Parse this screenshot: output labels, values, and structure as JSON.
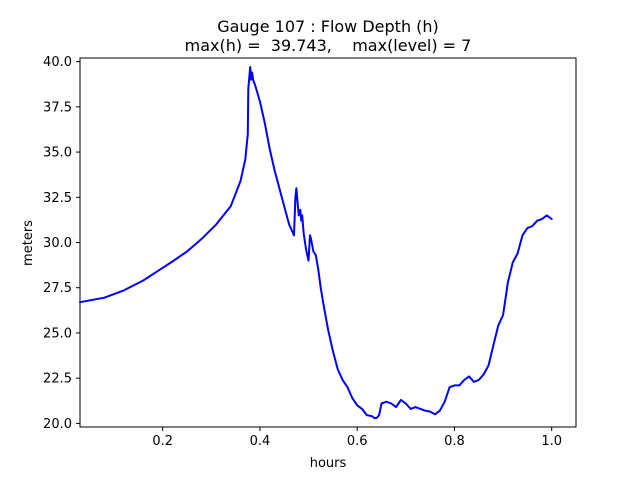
{
  "chart_data": {
    "type": "line",
    "title": "Gauge 107 : Flow Depth (h)",
    "subtitle": "max(h) =  39.743,    max(level) = 7",
    "xlabel": "hours",
    "ylabel": "meters",
    "xlim": [
      0.03,
      1.05
    ],
    "ylim": [
      19.8,
      40.2
    ],
    "xticks": [
      0.2,
      0.4,
      0.6,
      0.8,
      1.0
    ],
    "xtick_labels": [
      "0.2",
      "0.4",
      "0.6",
      "0.8",
      "1.0"
    ],
    "yticks": [
      20.0,
      22.5,
      25.0,
      27.5,
      30.0,
      32.5,
      35.0,
      37.5,
      40.0
    ],
    "ytick_labels": [
      "20.0",
      "22.5",
      "25.0",
      "27.5",
      "30.0",
      "32.5",
      "35.0",
      "37.5",
      "40.0"
    ],
    "grid": false,
    "color": "#0000ff",
    "series": [
      {
        "x": [
          0.03,
          0.08,
          0.12,
          0.16,
          0.2,
          0.22,
          0.25,
          0.28,
          0.31,
          0.34,
          0.36,
          0.37,
          0.375,
          0.376,
          0.38,
          0.382,
          0.384,
          0.386,
          0.39,
          0.4,
          0.41,
          0.42,
          0.43,
          0.44,
          0.45,
          0.46,
          0.47,
          0.473,
          0.475,
          0.478,
          0.48,
          0.483,
          0.485,
          0.487,
          0.49,
          0.495,
          0.5,
          0.503,
          0.505,
          0.51,
          0.515,
          0.52,
          0.525,
          0.53,
          0.54,
          0.55,
          0.56,
          0.57,
          0.58,
          0.59,
          0.6,
          0.61,
          0.62,
          0.63,
          0.635,
          0.64,
          0.645,
          0.65,
          0.66,
          0.67,
          0.68,
          0.69,
          0.7,
          0.71,
          0.72,
          0.73,
          0.74,
          0.75,
          0.76,
          0.77,
          0.78,
          0.79,
          0.8,
          0.81,
          0.82,
          0.83,
          0.84,
          0.85,
          0.86,
          0.87,
          0.88,
          0.89,
          0.9,
          0.91,
          0.92,
          0.93,
          0.94,
          0.95,
          0.96,
          0.97,
          0.98,
          0.99,
          1.0
        ],
        "y": [
          26.7,
          26.95,
          27.35,
          27.9,
          28.6,
          28.95,
          29.5,
          30.2,
          31.0,
          32.0,
          33.4,
          34.6,
          36.0,
          38.5,
          39.7,
          39.0,
          39.4,
          39.0,
          38.7,
          37.8,
          36.6,
          35.2,
          34.0,
          33.0,
          32.0,
          31.0,
          30.4,
          32.5,
          33.0,
          32.0,
          31.5,
          31.8,
          31.2,
          31.5,
          30.5,
          29.6,
          29.0,
          30.4,
          30.2,
          29.5,
          29.3,
          28.5,
          27.5,
          26.7,
          25.2,
          24.0,
          23.0,
          22.4,
          22.0,
          21.4,
          21.0,
          20.8,
          20.45,
          20.4,
          20.3,
          20.3,
          20.45,
          21.1,
          21.2,
          21.1,
          20.9,
          21.3,
          21.1,
          20.8,
          20.9,
          20.8,
          20.7,
          20.65,
          20.5,
          20.7,
          21.2,
          22.0,
          22.1,
          22.1,
          22.4,
          22.6,
          22.3,
          22.4,
          22.7,
          23.2,
          24.3,
          25.4,
          26.0,
          27.8,
          28.9,
          29.4,
          30.4,
          30.8,
          30.9,
          31.2,
          31.3,
          31.5,
          31.3
        ]
      }
    ]
  }
}
